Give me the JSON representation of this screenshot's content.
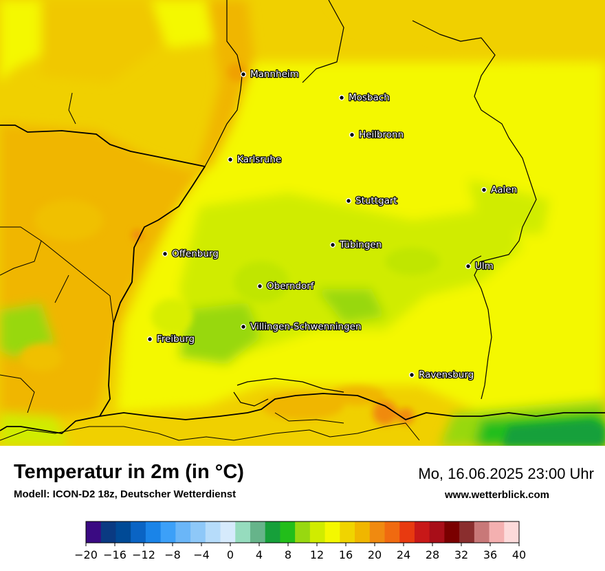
{
  "title": "Temperatur in 2m (in °C)",
  "model": "Modell: ICON-D2 18z, Deutscher Wetterdienst",
  "datetime": "Mo, 16.06.2025 23:00 Uhr",
  "website": "www.wetterblick.com",
  "cities": [
    {
      "name": "Mannheim"
    },
    {
      "name": "Mosbach"
    },
    {
      "name": "Heilbronn"
    },
    {
      "name": "Karlsruhe"
    },
    {
      "name": "Aalen"
    },
    {
      "name": "Stuttgart"
    },
    {
      "name": "Tübingen"
    },
    {
      "name": "Offenburg"
    },
    {
      "name": "Ulm"
    },
    {
      "name": "Oberndorf"
    },
    {
      "name": "Villingen-Schwenningen"
    },
    {
      "name": "Freiburg"
    },
    {
      "name": "Ravensburg"
    }
  ],
  "legend": {
    "min": -20,
    "max": 40,
    "step": 2,
    "tick_labels": [
      "−20",
      "−16",
      "−12",
      "−8",
      "−4",
      "0",
      "4",
      "8",
      "12",
      "16",
      "20",
      "24",
      "28",
      "32",
      "36",
      "40"
    ],
    "colors": [
      "#3a0a82",
      "#0a3a82",
      "#004a96",
      "#0a64c4",
      "#1a84e8",
      "#3ca0f8",
      "#6ab6f8",
      "#8ec8f8",
      "#b6dcfa",
      "#d6eafc",
      "#96dcbe",
      "#66b48a",
      "#16a03a",
      "#22be1a",
      "#98d810",
      "#d0ec00",
      "#f4f800",
      "#f0d400",
      "#f0b600",
      "#f08a10",
      "#f06a10",
      "#e83a10",
      "#c81818",
      "#a80e18",
      "#7a0000",
      "#8a2e2e",
      "#c87878",
      "#f4b0b0",
      "#fcdada"
    ]
  },
  "colors": {
    "warm_orange": "#f0a800",
    "yellow_orange": "#f0d000",
    "yellow": "#f4f800",
    "yellow_green": "#d0ec00",
    "light_green": "#98d810",
    "green": "#22be1a",
    "dark_green": "#16a03a",
    "hot_spot": "#f08a10"
  }
}
